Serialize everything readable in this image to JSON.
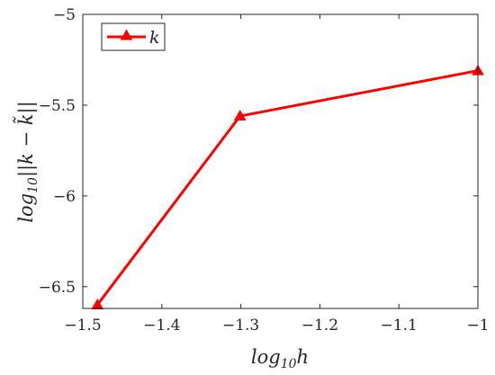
{
  "chart_data": {
    "type": "line",
    "title": "",
    "xlabel": "log₁₀h",
    "ylabel": "log₁₀||k − k̃||",
    "xlim": [
      -1.5,
      -1.0
    ],
    "ylim": [
      -6.62,
      -5.0
    ],
    "xticks": [
      -1.5,
      -1.4,
      -1.3,
      -1.2,
      -1.1,
      -1.0
    ],
    "yticks": [
      -6.5,
      -6.0,
      -5.5,
      -5.0
    ],
    "xtick_labels": [
      "−1.5",
      "−1.4",
      "−1.3",
      "−1.2",
      "−1.1",
      "−1"
    ],
    "ytick_labels": [
      "−6.5",
      "−6",
      "−5.5",
      "−5"
    ],
    "grid": false,
    "legend_position": "top-left",
    "series": [
      {
        "name": "k",
        "color": "#ff0000",
        "marker": "triangle",
        "x": [
          -1.4815,
          -1.301,
          -1.0
        ],
        "y": [
          -6.6,
          -5.56,
          -5.31
        ]
      }
    ]
  }
}
